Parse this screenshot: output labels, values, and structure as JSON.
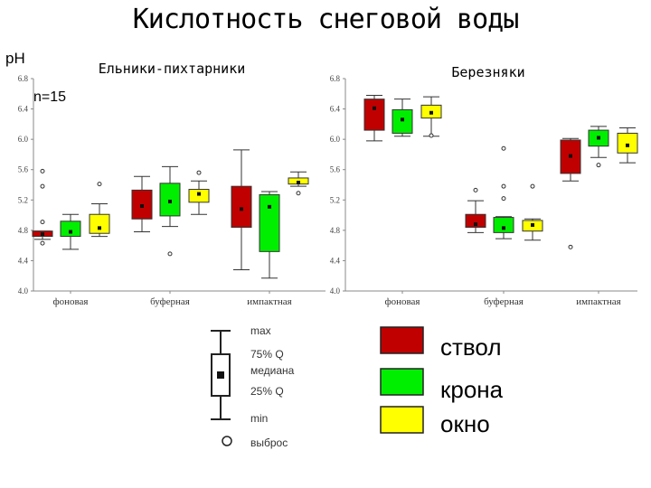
{
  "title": "Кислотность снеговой воды",
  "ylabel": "pH",
  "n_label": "n=15",
  "colors": {
    "ствол": "#c00000",
    "крона": "#00ee00",
    "окно": "#ffff00"
  },
  "legend": {
    "box_labels": [
      "max",
      "75% Q",
      "медиана",
      "25% Q",
      "min",
      "выброс"
    ],
    "colors": [
      {
        "name": "ствол",
        "color": "#c00000"
      },
      {
        "name": "крона",
        "color": "#00ee00"
      },
      {
        "name": "окно",
        "color": "#ffff00"
      }
    ]
  },
  "chart_data": [
    {
      "type": "boxplot",
      "title": "Ельники-пихтарники",
      "ylim": [
        4.0,
        6.8
      ],
      "yticks": [
        "4.0",
        "4.4",
        "4.8",
        "5.2",
        "5.6",
        "6.0",
        "6.4",
        "6.8"
      ],
      "categories": [
        "фоновая",
        "буферная",
        "импактная"
      ],
      "series": [
        {
          "name": "ствол",
          "color": "#c00000",
          "boxes": [
            {
              "min": 4.68,
              "q1": 4.72,
              "median": 4.75,
              "q3": 4.79,
              "max": 4.79,
              "outliers": [
                4.63,
                4.91,
                5.38,
                5.58
              ]
            },
            {
              "min": 4.78,
              "q1": 4.95,
              "median": 5.12,
              "q3": 5.33,
              "max": 5.51,
              "outliers": []
            },
            {
              "min": 4.28,
              "q1": 4.84,
              "median": 5.08,
              "q3": 5.38,
              "max": 5.86,
              "outliers": []
            }
          ]
        },
        {
          "name": "крона",
          "color": "#00ee00",
          "boxes": [
            {
              "min": 4.55,
              "q1": 4.72,
              "median": 4.78,
              "q3": 4.92,
              "max": 5.01,
              "outliers": []
            },
            {
              "min": 4.85,
              "q1": 4.99,
              "median": 5.18,
              "q3": 5.42,
              "max": 5.64,
              "outliers": [
                4.49
              ]
            },
            {
              "min": 4.17,
              "q1": 4.52,
              "median": 5.11,
              "q3": 5.27,
              "max": 5.31,
              "outliers": []
            }
          ]
        },
        {
          "name": "окно",
          "color": "#ffff00",
          "boxes": [
            {
              "min": 4.72,
              "q1": 4.76,
              "median": 4.83,
              "q3": 5.01,
              "max": 5.15,
              "outliers": [
                5.41
              ]
            },
            {
              "min": 5.01,
              "q1": 5.17,
              "median": 5.28,
              "q3": 5.34,
              "max": 5.45,
              "outliers": [
                5.56
              ]
            },
            {
              "min": 5.38,
              "q1": 5.41,
              "median": 5.43,
              "q3": 5.49,
              "max": 5.57,
              "outliers": [
                5.29
              ]
            }
          ]
        }
      ]
    },
    {
      "type": "boxplot",
      "title": "Березняки",
      "ylim": [
        4.0,
        6.8
      ],
      "yticks": [
        "4.0",
        "4.4",
        "4.8",
        "5.2",
        "5.6",
        "6.0",
        "6.4",
        "6.8"
      ],
      "categories": [
        "фоновая",
        "буферная",
        "импактная"
      ],
      "series": [
        {
          "name": "ствол",
          "color": "#c00000",
          "boxes": [
            {
              "min": 5.98,
              "q1": 6.12,
              "median": 6.41,
              "q3": 6.53,
              "max": 6.58,
              "outliers": []
            },
            {
              "min": 4.77,
              "q1": 4.84,
              "median": 4.88,
              "q3": 5.01,
              "max": 5.19,
              "outliers": [
                5.33
              ]
            },
            {
              "min": 5.45,
              "q1": 5.55,
              "median": 5.78,
              "q3": 5.99,
              "max": 6.01,
              "outliers": [
                4.58
              ]
            }
          ]
        },
        {
          "name": "крона",
          "color": "#00ee00",
          "boxes": [
            {
              "min": 6.04,
              "q1": 6.08,
              "median": 6.26,
              "q3": 6.39,
              "max": 6.53,
              "outliers": []
            },
            {
              "min": 4.69,
              "q1": 4.77,
              "median": 4.83,
              "q3": 4.97,
              "max": 4.98,
              "outliers": [
                5.22,
                5.38,
                5.88
              ]
            },
            {
              "min": 5.76,
              "q1": 5.91,
              "median": 6.02,
              "q3": 6.12,
              "max": 6.17,
              "outliers": [
                5.66
              ]
            }
          ]
        },
        {
          "name": "окно",
          "color": "#ffff00",
          "boxes": [
            {
              "min": 6.04,
              "q1": 6.28,
              "median": 6.35,
              "q3": 6.45,
              "max": 6.56,
              "outliers": [
                6.05
              ]
            },
            {
              "min": 4.67,
              "q1": 4.79,
              "median": 4.87,
              "q3": 4.93,
              "max": 4.95,
              "outliers": [
                5.38
              ]
            },
            {
              "min": 5.69,
              "q1": 5.82,
              "median": 5.92,
              "q3": 6.08,
              "max": 6.15,
              "outliers": []
            }
          ]
        }
      ]
    }
  ]
}
